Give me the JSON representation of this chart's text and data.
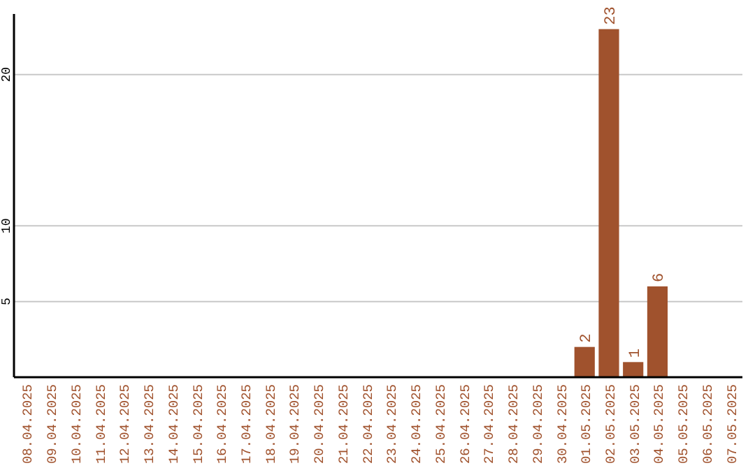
{
  "chart_data": {
    "type": "bar",
    "categories": [
      "08.04.2025",
      "09.04.2025",
      "10.04.2025",
      "11.04.2025",
      "12.04.2025",
      "13.04.2025",
      "14.04.2025",
      "15.04.2025",
      "16.04.2025",
      "17.04.2025",
      "18.04.2025",
      "19.04.2025",
      "20.04.2025",
      "21.04.2025",
      "22.04.2025",
      "23.04.2025",
      "24.04.2025",
      "25.04.2025",
      "26.04.2025",
      "27.04.2025",
      "28.04.2025",
      "29.04.2025",
      "30.04.2025",
      "01.05.2025",
      "02.05.2025",
      "03.05.2025",
      "04.05.2025",
      "05.05.2025",
      "06.05.2025",
      "07.05.2025"
    ],
    "values": [
      0,
      0,
      0,
      0,
      0,
      0,
      0,
      0,
      0,
      0,
      0,
      0,
      0,
      0,
      0,
      0,
      0,
      0,
      0,
      0,
      0,
      0,
      0,
      2,
      23,
      1,
      6,
      0,
      0,
      0
    ],
    "value_labels": [
      null,
      null,
      null,
      null,
      null,
      null,
      null,
      null,
      null,
      null,
      null,
      null,
      null,
      null,
      null,
      null,
      null,
      null,
      null,
      null,
      null,
      null,
      null,
      "2",
      "23",
      "1",
      "6",
      null,
      null,
      null
    ],
    "color": "#a0522d",
    "ylim": [
      0,
      24
    ],
    "yticks": [
      5,
      10,
      20
    ],
    "grid": "y"
  }
}
